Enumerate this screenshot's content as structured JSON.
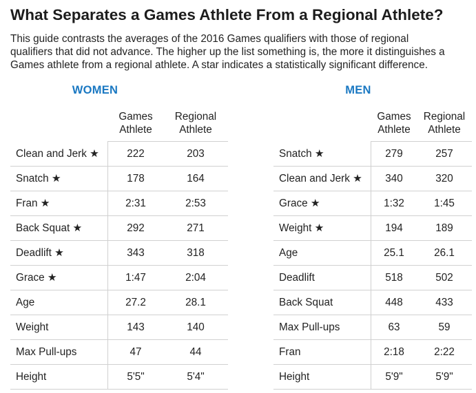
{
  "title": "What Separates a Games Athlete From a Regional Athlete?",
  "description_lines": [
    "This guide contrasts the averages of the 2016 Games qualifiers with those of regional",
    "qualifiers that did not advance. The higher up the list something is, the more it distinguishes a",
    "Games athlete from a regional athlete. A star indicates a statistically significant difference."
  ],
  "colors": {
    "section_heading": "#1a78c2",
    "text": "#222222",
    "rule": "#d0d0d0"
  },
  "women": {
    "heading": "WOMEN",
    "columns": [
      {
        "line1": "Games",
        "line2": "Athlete"
      },
      {
        "line1": "Regional",
        "line2": "Athlete"
      }
    ],
    "rows": [
      {
        "label": "Clean and Jerk ★",
        "games": "222",
        "regional": "203"
      },
      {
        "label": "Snatch ★",
        "games": "178",
        "regional": "164"
      },
      {
        "label": "Fran ★",
        "games": "2:31",
        "regional": "2:53"
      },
      {
        "label": "Back Squat ★",
        "games": "292",
        "regional": "271"
      },
      {
        "label": "Deadlift ★",
        "games": "343",
        "regional": "318"
      },
      {
        "label": "Grace ★",
        "games": "1:47",
        "regional": "2:04"
      },
      {
        "label": "Age",
        "games": "27.2",
        "regional": "28.1"
      },
      {
        "label": "Weight",
        "games": "143",
        "regional": "140"
      },
      {
        "label": "Max Pull-ups",
        "games": "47",
        "regional": "44"
      },
      {
        "label": "Height",
        "games": "5'5\"",
        "regional": "5'4\""
      }
    ]
  },
  "men": {
    "heading": "MEN",
    "columns": [
      {
        "line1": "Games",
        "line2": "Athlete"
      },
      {
        "line1": "Regional",
        "line2": "Athlete"
      }
    ],
    "rows": [
      {
        "label": "Snatch ★",
        "games": "279",
        "regional": "257"
      },
      {
        "label": "Clean and Jerk ★",
        "games": "340",
        "regional": "320"
      },
      {
        "label": "Grace ★",
        "games": "1:32",
        "regional": "1:45"
      },
      {
        "label": "Weight ★",
        "games": "194",
        "regional": "189"
      },
      {
        "label": "Age",
        "games": "25.1",
        "regional": "26.1"
      },
      {
        "label": "Deadlift",
        "games": "518",
        "regional": "502"
      },
      {
        "label": "Back Squat",
        "games": "448",
        "regional": "433"
      },
      {
        "label": "Max Pull-ups",
        "games": "63",
        "regional": "59"
      },
      {
        "label": "Fran",
        "games": "2:18",
        "regional": "2:22"
      },
      {
        "label": "Height",
        "games": "5'9\"",
        "regional": "5'9\""
      }
    ]
  }
}
